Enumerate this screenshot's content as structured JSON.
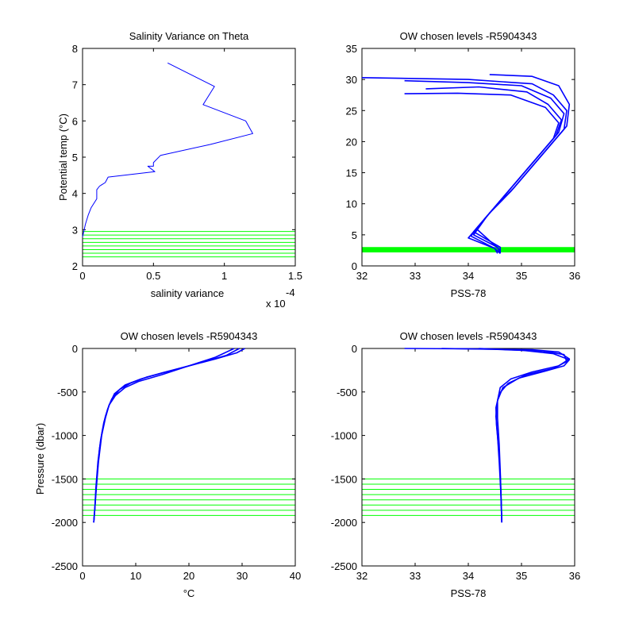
{
  "figure": {
    "background": "#ffffff",
    "line_color": "#0000ff",
    "level_color": "#00ff00"
  },
  "chart_data": [
    {
      "id": "salinity-variance",
      "type": "line",
      "title": "Salinity Variance on Theta",
      "xlabel": "salinity variance",
      "ylabel": "Potential temp (°C)",
      "x_scale_note": "x 10",
      "x_scale_exponent": "-4",
      "xlim": [
        0,
        1.5
      ],
      "ylim": [
        2,
        8
      ],
      "xticks": [
        "0",
        "0.5",
        "1",
        "1.5"
      ],
      "yticks": [
        "2",
        "3",
        "4",
        "5",
        "6",
        "7",
        "8"
      ],
      "series": [
        {
          "color": "#0000ff",
          "x": [
            0.6,
            0.93,
            0.85,
            1.15,
            1.2,
            0.9,
            0.55,
            0.5,
            0.5,
            0.46,
            0.51,
            0.18,
            0.16,
            0.12,
            0.1,
            0.1,
            0.06,
            0.04,
            0.02,
            0.0
          ],
          "y": [
            7.6,
            6.95,
            6.45,
            6.0,
            5.65,
            5.35,
            5.05,
            4.85,
            4.75,
            4.75,
            4.6,
            4.45,
            4.3,
            4.2,
            4.1,
            3.85,
            3.6,
            3.4,
            3.15,
            2.8
          ]
        }
      ],
      "levels": {
        "color": "#00ff00",
        "y": [
          2.25,
          2.35,
          2.45,
          2.55,
          2.65,
          2.75,
          2.85,
          2.95
        ]
      }
    },
    {
      "id": "theta-vs-salinity",
      "type": "line",
      "title": "OW chosen levels -R5904343",
      "xlabel": "PSS-78",
      "ylabel": "",
      "xlim": [
        32,
        36
      ],
      "ylim": [
        0,
        35
      ],
      "xticks": [
        "32",
        "33",
        "34",
        "35",
        "36"
      ],
      "yticks": [
        "0",
        "5",
        "10",
        "15",
        "20",
        "25",
        "30",
        "35"
      ],
      "series": [
        {
          "color": "#0000ff",
          "x": [
            32.0,
            34.0,
            35.2,
            35.6,
            35.85,
            35.8,
            35.5,
            35.2,
            34.8,
            34.4,
            34.1,
            34.6,
            34.6
          ],
          "y": [
            30.3,
            30.0,
            29.3,
            27.5,
            25.0,
            22.0,
            19.0,
            16.0,
            12.0,
            8.5,
            5.5,
            3.0,
            2.0
          ]
        },
        {
          "color": "#0000ff",
          "x": [
            32.8,
            34.0,
            35.0,
            35.55,
            35.8,
            35.7,
            35.4,
            35.1,
            34.7,
            34.35,
            34.1,
            34.55,
            34.6
          ],
          "y": [
            29.8,
            29.5,
            29.0,
            27.0,
            24.5,
            21.5,
            18.5,
            15.5,
            11.5,
            8.0,
            5.0,
            3.0,
            2.0
          ]
        },
        {
          "color": "#0000ff",
          "x": [
            33.2,
            34.2,
            35.1,
            35.5,
            35.75,
            35.65,
            35.35,
            35.05,
            34.65,
            34.3,
            34.05,
            34.5,
            34.6
          ],
          "y": [
            28.5,
            28.8,
            28.0,
            26.0,
            23.5,
            21.0,
            18.0,
            15.0,
            11.0,
            7.5,
            4.8,
            2.8,
            2.0
          ]
        },
        {
          "color": "#0000ff",
          "x": [
            32.8,
            33.8,
            34.8,
            35.45,
            35.7,
            35.6,
            35.3,
            35.0,
            34.6,
            34.25,
            34.0,
            34.5,
            34.55
          ],
          "y": [
            27.7,
            27.8,
            27.5,
            25.5,
            23.0,
            20.5,
            17.5,
            14.5,
            10.5,
            7.0,
            4.5,
            2.8,
            2.0
          ]
        },
        {
          "color": "#0000ff",
          "x": [
            34.4,
            35.2,
            35.7,
            35.9,
            35.85,
            35.55,
            35.25,
            34.85,
            34.45,
            34.15,
            34.6
          ],
          "y": [
            30.8,
            30.5,
            29.0,
            26.0,
            22.5,
            19.5,
            16.5,
            12.5,
            9.0,
            6.0,
            2.5
          ]
        }
      ],
      "levels": {
        "color": "#00ff00",
        "y": [
          2.25,
          2.35,
          2.45,
          2.55,
          2.65,
          2.75,
          2.85,
          2.95
        ]
      }
    },
    {
      "id": "pressure-vs-temperature",
      "type": "line",
      "title": "OW chosen levels -R5904343",
      "xlabel": "°C",
      "ylabel": "Pressure (dbar)",
      "xlim": [
        0,
        40
      ],
      "ylim": [
        -2500,
        0
      ],
      "xticks": [
        "0",
        "10",
        "20",
        "30",
        "40"
      ],
      "yticks": [
        "-2500",
        "-2000",
        "-1500",
        "-1000",
        "-500",
        "0"
      ],
      "series": [
        {
          "color": "#0000ff",
          "x": [
            30.5,
            29.0,
            25.0,
            20.0,
            15.0,
            11.0,
            8.0,
            6.0,
            5.0,
            4.3,
            3.6,
            3.0,
            2.6,
            2.3,
            2.1
          ],
          "y": [
            0,
            -50,
            -120,
            -200,
            -280,
            -350,
            -420,
            -520,
            -650,
            -800,
            -1000,
            -1300,
            -1600,
            -1850,
            -2000
          ]
        },
        {
          "color": "#0000ff",
          "x": [
            29.5,
            27.0,
            22.5,
            17.0,
            12.0,
            9.0,
            7.0,
            5.5,
            4.7,
            4.0,
            3.4,
            2.9,
            2.5,
            2.3,
            2.1
          ],
          "y": [
            0,
            -80,
            -160,
            -250,
            -330,
            -400,
            -470,
            -580,
            -700,
            -850,
            -1050,
            -1300,
            -1600,
            -1850,
            -2000
          ]
        },
        {
          "color": "#0000ff",
          "x": [
            28.5,
            25.0,
            20.0,
            15.0,
            10.5,
            8.0,
            6.2,
            5.0,
            4.3,
            3.7,
            3.2,
            2.8,
            2.5,
            2.3,
            2.1
          ],
          "y": [
            0,
            -100,
            -200,
            -300,
            -380,
            -450,
            -540,
            -650,
            -780,
            -950,
            -1150,
            -1400,
            -1650,
            -1850,
            -2000
          ]
        }
      ],
      "levels": {
        "color": "#00ff00",
        "y": [
          -1500,
          -1560,
          -1620,
          -1680,
          -1740,
          -1800,
          -1860,
          -1920
        ]
      }
    },
    {
      "id": "pressure-vs-salinity",
      "type": "line",
      "title": "OW chosen levels -R5904343",
      "xlabel": "PSS-78",
      "ylabel": "",
      "xlim": [
        32,
        36
      ],
      "ylim": [
        -2500,
        0
      ],
      "xticks": [
        "32",
        "33",
        "34",
        "35",
        "36"
      ],
      "yticks": [
        "-2500",
        "-2000",
        "-1500",
        "-1000",
        "-500",
        "0"
      ],
      "series": [
        {
          "color": "#0000ff",
          "x": [
            32.8,
            34.0,
            35.2,
            35.7,
            35.9,
            35.7,
            35.2,
            34.8,
            34.6,
            34.55,
            34.55,
            34.58,
            34.6,
            34.62,
            34.63
          ],
          "y": [
            0,
            -5,
            -15,
            -40,
            -120,
            -200,
            -270,
            -350,
            -450,
            -600,
            -800,
            -1100,
            -1400,
            -1750,
            -2000
          ]
        },
        {
          "color": "#0000ff",
          "x": [
            33.5,
            34.5,
            35.4,
            35.8,
            35.85,
            35.6,
            35.1,
            34.75,
            34.58,
            34.52,
            34.53,
            34.57,
            34.6,
            34.62,
            34.63
          ],
          "y": [
            0,
            -10,
            -30,
            -70,
            -150,
            -230,
            -300,
            -400,
            -520,
            -680,
            -880,
            -1150,
            -1450,
            -1780,
            -2000
          ]
        },
        {
          "color": "#0000ff",
          "x": [
            34.2,
            35.0,
            35.6,
            35.9,
            35.8,
            35.45,
            34.95,
            34.65,
            34.55,
            34.52,
            34.55,
            34.58,
            34.61,
            34.63
          ],
          "y": [
            0,
            -20,
            -60,
            -130,
            -200,
            -260,
            -340,
            -450,
            -600,
            -780,
            -1000,
            -1300,
            -1650,
            -2000
          ]
        }
      ],
      "levels": {
        "color": "#00ff00",
        "y": [
          -1500,
          -1560,
          -1620,
          -1680,
          -1740,
          -1800,
          -1860,
          -1920
        ]
      }
    }
  ]
}
